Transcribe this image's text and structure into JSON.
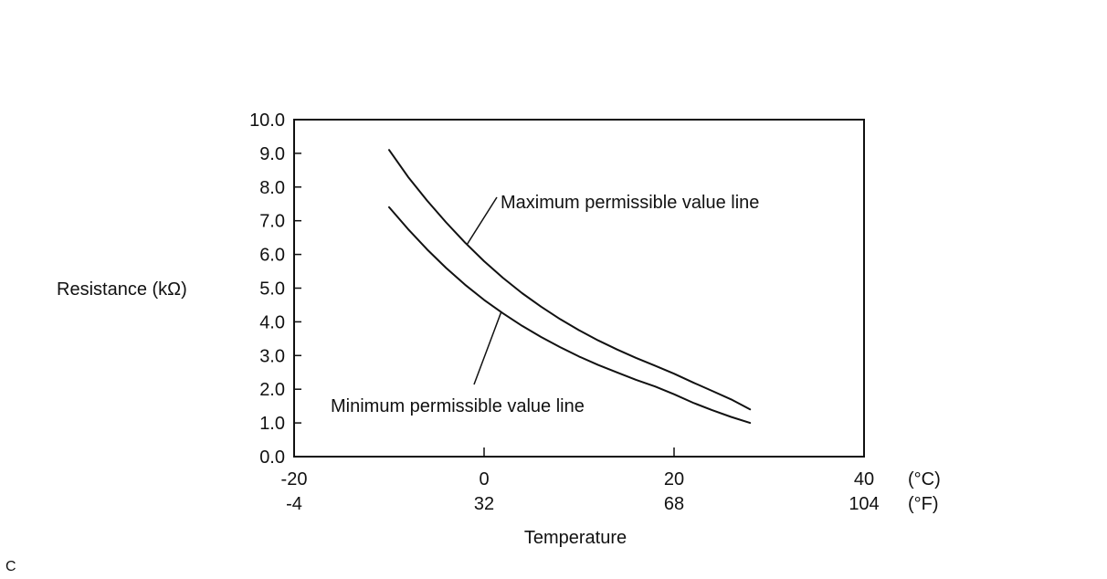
{
  "chart_data": {
    "type": "line",
    "title": "",
    "xlabel": "Temperature",
    "ylabel": "Resistance (kΩ)",
    "xlim": [
      -20,
      40
    ],
    "ylim": [
      0.0,
      10.0
    ],
    "y_ticks": [
      "0.0",
      "1.0",
      "2.0",
      "3.0",
      "4.0",
      "5.0",
      "6.0",
      "7.0",
      "8.0",
      "9.0",
      "10.0"
    ],
    "x_ticks_c": [
      {
        "value": -20,
        "label": "-20"
      },
      {
        "value": 0,
        "label": "0"
      },
      {
        "value": 20,
        "label": "20"
      },
      {
        "value": 40,
        "label": "40"
      }
    ],
    "x_ticks_f": [
      "-4",
      "32",
      "68",
      "104"
    ],
    "unit_c": "(°C)",
    "unit_f": "(°F)",
    "grid": false,
    "series": [
      {
        "name": "Maximum permissible value line",
        "x": [
          -10,
          -8,
          -6,
          -4,
          -2,
          0,
          2,
          4,
          6,
          8,
          10,
          12,
          14,
          16,
          18,
          20,
          22,
          24,
          26,
          28
        ],
        "values": [
          9.1,
          8.3,
          7.6,
          6.95,
          6.35,
          5.8,
          5.3,
          4.85,
          4.45,
          4.08,
          3.75,
          3.45,
          3.18,
          2.93,
          2.7,
          2.46,
          2.2,
          1.95,
          1.7,
          1.4
        ]
      },
      {
        "name": "Minimum permissible value line",
        "x": [
          -10,
          -8,
          -6,
          -4,
          -2,
          0,
          2,
          4,
          6,
          8,
          10,
          12,
          14,
          16,
          18,
          20,
          22,
          24,
          26,
          28
        ],
        "values": [
          7.4,
          6.75,
          6.15,
          5.6,
          5.1,
          4.65,
          4.25,
          3.88,
          3.55,
          3.25,
          2.97,
          2.72,
          2.5,
          2.28,
          2.08,
          1.85,
          1.6,
          1.38,
          1.18,
          1.0
        ]
      }
    ],
    "annotations": [
      {
        "text": "Maximum permissible value line",
        "points_to_series": 0,
        "at_x": -1.8
      },
      {
        "text": "Minimum permissible value line",
        "points_to_series": 1,
        "at_x": 1.8
      }
    ]
  },
  "corner_label": "C"
}
